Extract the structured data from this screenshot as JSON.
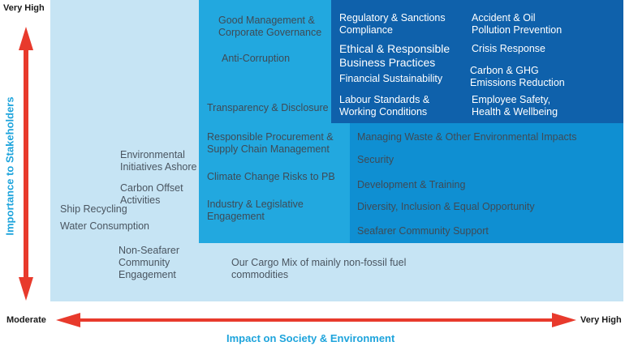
{
  "axes": {
    "y_top": "Very High",
    "y_title": "Importance to Stakeholders",
    "x_left": "Moderate",
    "x_right": "Very High",
    "x_title": "Impact on Society & Environment",
    "arrow_color": "#e83a2c"
  },
  "colors": {
    "zone_light": "#c6e4f4",
    "zone_mid": "#22a8df",
    "zone_blue": "#0f8fd2",
    "zone_dark": "#0f61ab",
    "title_blue": "#1ea4dc"
  },
  "topics": {
    "good_mgmt": "Good Management &\nCorporate Governance",
    "anti_corruption": "Anti-Corruption",
    "transparency": "Transparency & Disclosure",
    "regulatory": "Regulatory & Sanctions\nCompliance",
    "ethical": "Ethical & Responsible\nBusiness Practices",
    "financial": "Financial Sustainability",
    "labour": "Labour Standards &\nWorking Conditions",
    "accident": "Accident & Oil\nPollution Prevention",
    "crisis": "Crisis Response",
    "carbon_ghg": "Carbon & GHG\nEmissions Reduction",
    "employee": "Employee Safety,\nHealth & Wellbeing",
    "procurement": "Responsible Procurement &\nSupply Chain Management",
    "climate": "Climate Change Risks to PB",
    "industry": "Industry & Legislative\nEngagement",
    "waste": "Managing Waste & Other Environmental Impacts",
    "security": "Security",
    "development": "Development & Training",
    "diversity": "Diversity, Inclusion & Equal Opportunity",
    "seafarer": "Seafarer Community Support",
    "env_ashore": "Environmental\nInitiatives Ashore",
    "carbon_offset": "Carbon Offset\nActivities",
    "ship_recycling": "Ship Recycling",
    "water": "Water Consumption",
    "non_seafarer": "Non-Seafarer\nCommunity\nEngagement",
    "cargo_mix": "Our Cargo Mix of mainly non-fossil fuel\ncommodities"
  }
}
